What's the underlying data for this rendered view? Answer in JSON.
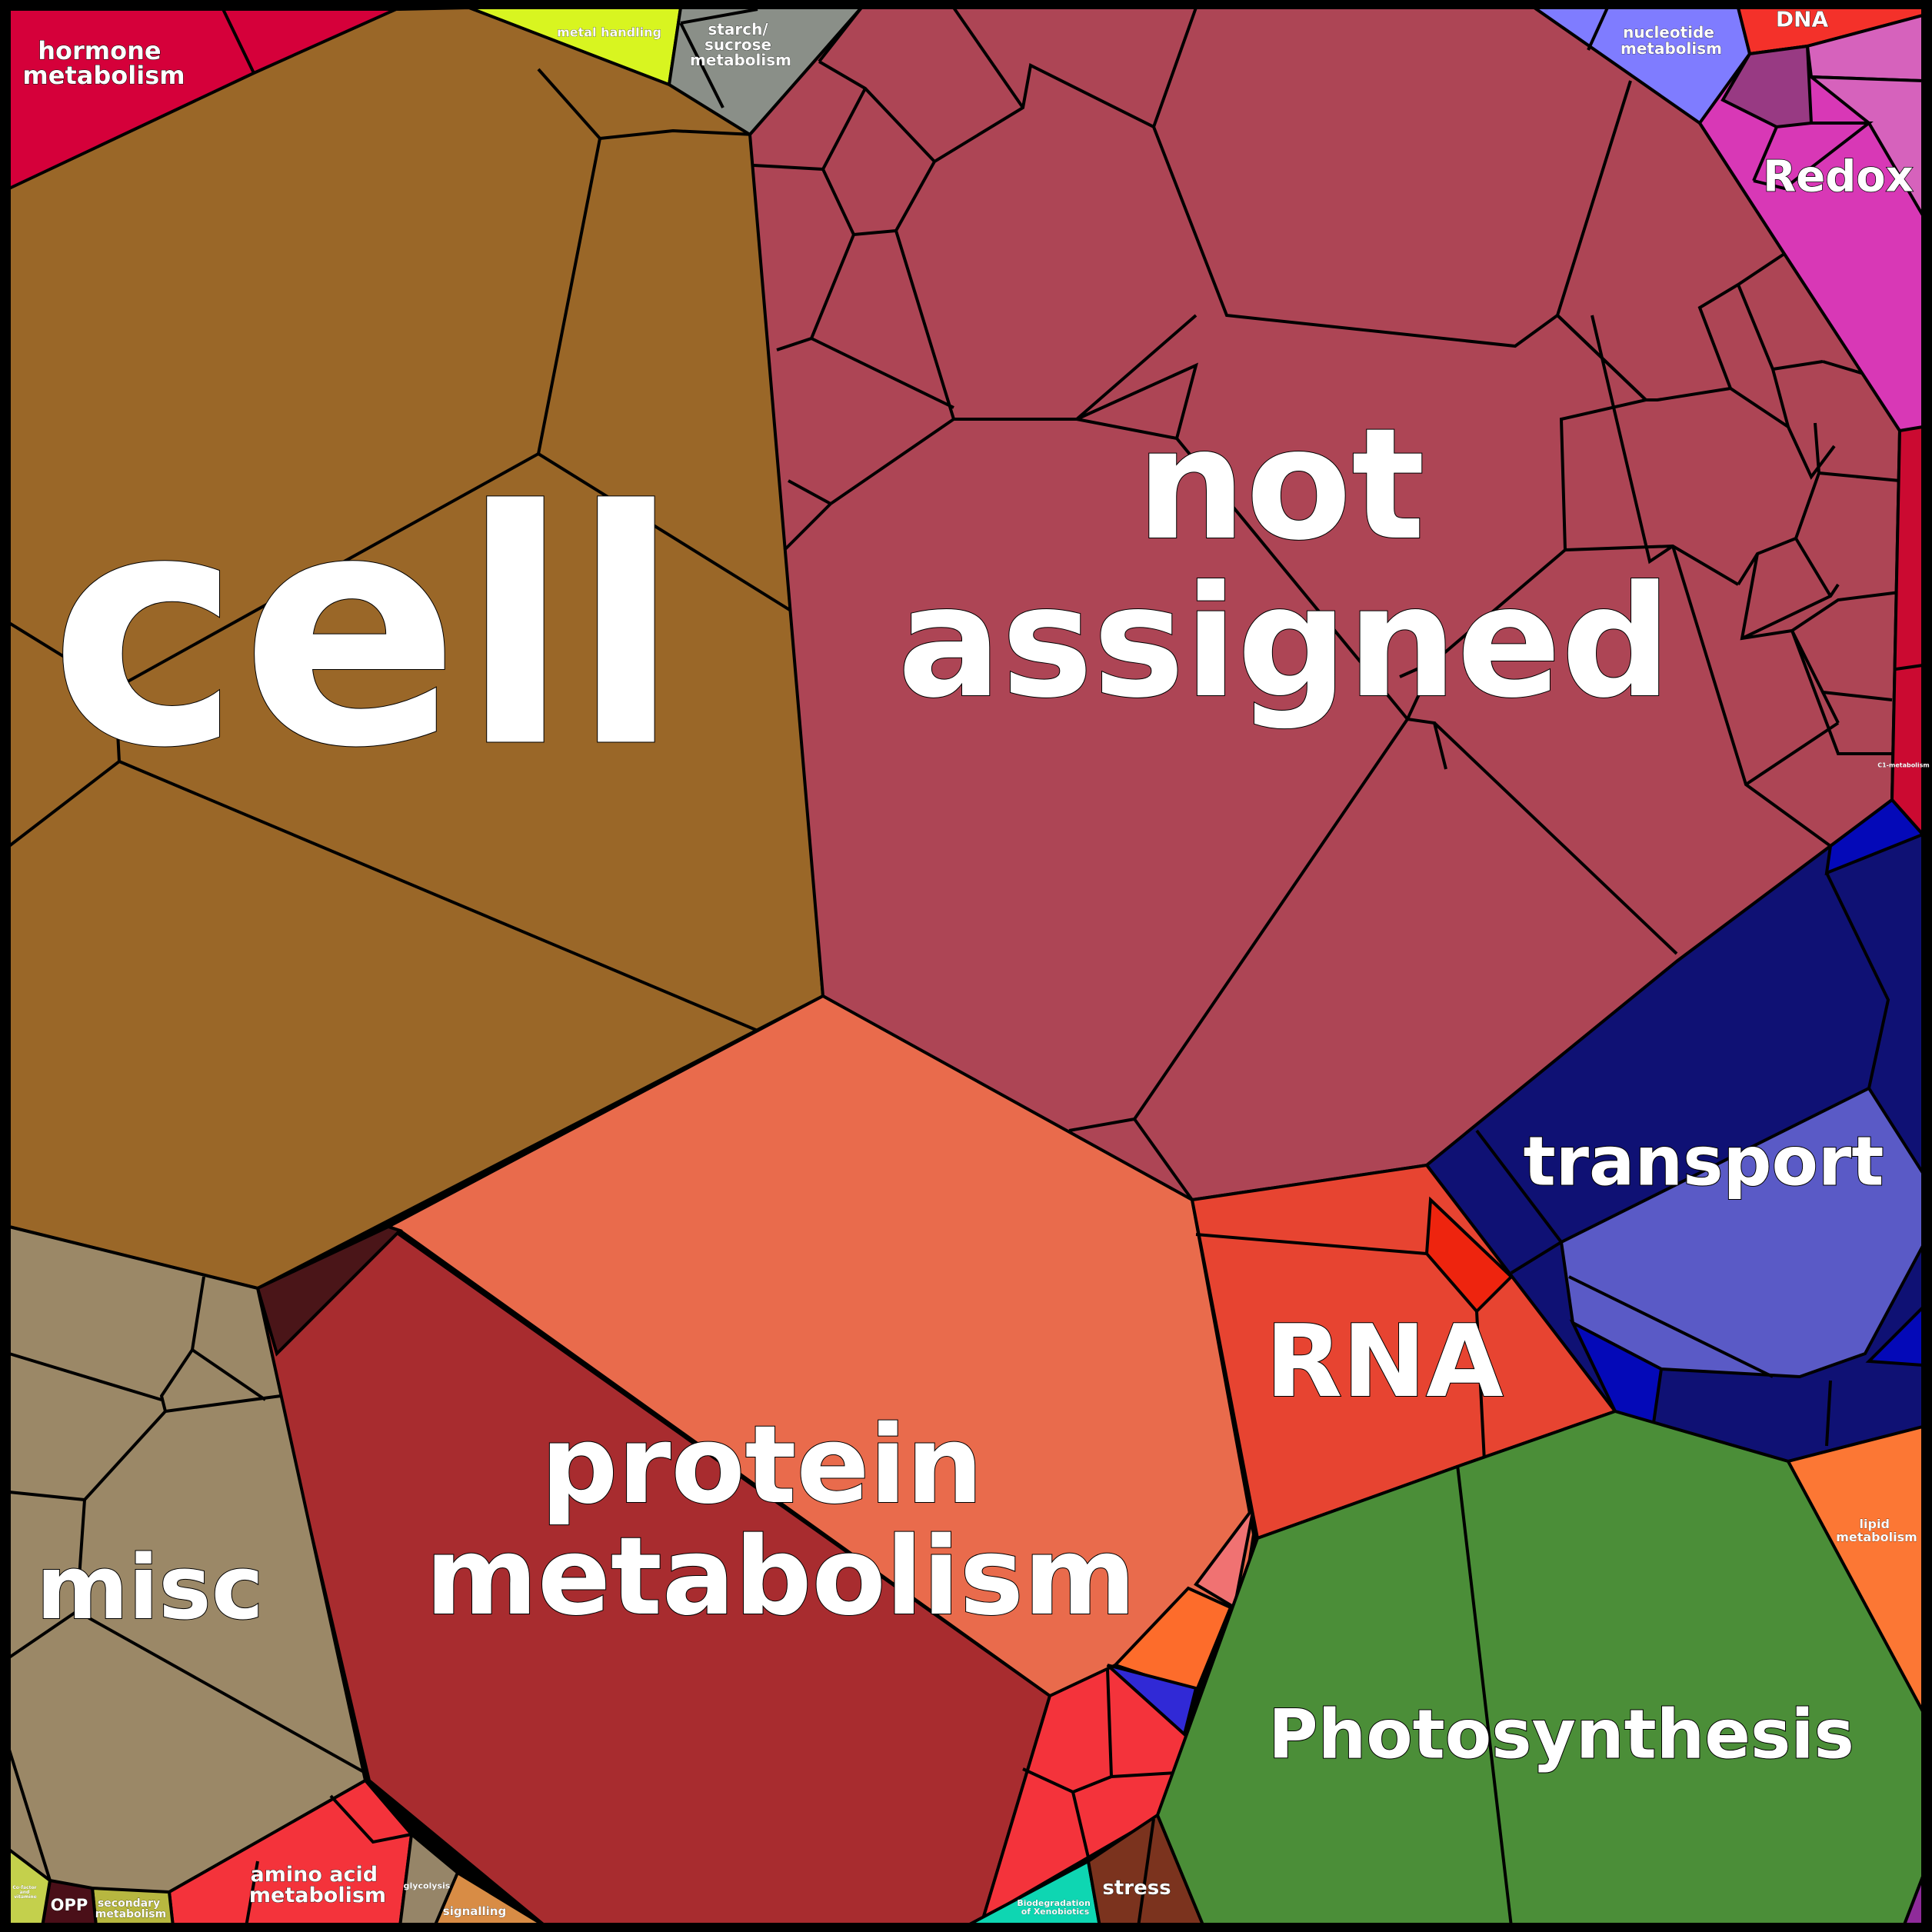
{
  "title": "",
  "categories": [
    {
      "id": "cell",
      "label": "cell",
      "color": "#9a6728"
    },
    {
      "id": "not-assigned",
      "label": "not assigned",
      "color": "#ad4555"
    },
    {
      "id": "protein-metabolism",
      "label": "protein metabolism",
      "color": "#e96b4c"
    },
    {
      "id": "protein-metabolism-sub",
      "label": "",
      "color": "#a82c2f"
    },
    {
      "id": "misc",
      "label": "misc",
      "color": "#9b8867"
    },
    {
      "id": "rna",
      "label": "RNA",
      "color": "#e74431"
    },
    {
      "id": "transport",
      "label": "transport",
      "color": "#0f1174"
    },
    {
      "id": "transport-sub",
      "label": "",
      "color": "#5a5ac6"
    },
    {
      "id": "photosynthesis",
      "label": "Photosynthesis",
      "color": "#4b8e38"
    },
    {
      "id": "redox",
      "label": "Redox",
      "color": "#d838b6"
    },
    {
      "id": "hormone-metabolism",
      "label": "hormone metabolism",
      "color": "#d5003a"
    },
    {
      "id": "metal-handling",
      "label": "metal handling",
      "color": "#d8f520"
    },
    {
      "id": "starch-sucrose-metabolism",
      "label": "starch/ sucrose metabolism",
      "color": "#8a8f88"
    },
    {
      "id": "nucleotide-metabolism",
      "label": "nucleotide metabolism",
      "color": "#7f7cff"
    },
    {
      "id": "dna",
      "label": "DNA",
      "color": "#f4312a"
    },
    {
      "id": "lipid-metabolism",
      "label": "lipid metabolism",
      "color": "#fc7734"
    },
    {
      "id": "c1-metabolism",
      "label": "C1-metabolism",
      "color": "#cb0a31"
    },
    {
      "id": "amino-acid-metabolism",
      "label": "amino acid metabolism",
      "color": "#f4333b"
    },
    {
      "id": "stress",
      "label": "stress",
      "color": "#7b331e"
    },
    {
      "id": "biodegradation-of-xenobiotics",
      "label": "Biodegradation of Xenobiotics",
      "color": "#0ed6b2"
    },
    {
      "id": "signalling",
      "label": "signalling",
      "color": "#d88c45"
    },
    {
      "id": "glycolysis",
      "label": "glycolysis",
      "color": "#968568"
    },
    {
      "id": "secondary-metabolism",
      "label": "secondary metabolism",
      "color": "#b7b740"
    },
    {
      "id": "opp",
      "label": "OPP",
      "color": "#4a0f18"
    },
    {
      "id": "cofactor-vitamine-metabolism",
      "label": "Co-factor and vitamine metabolism",
      "color": "#c4d04c"
    }
  ]
}
